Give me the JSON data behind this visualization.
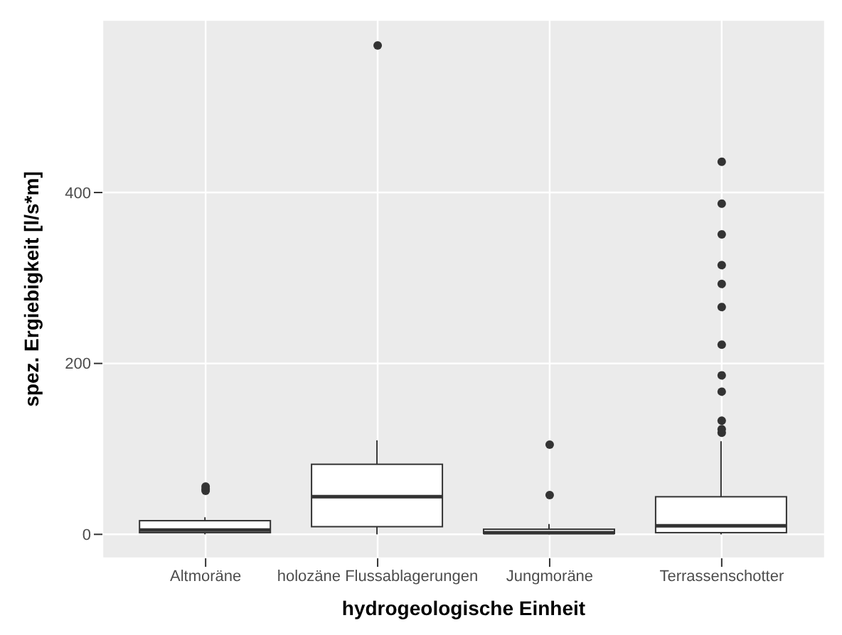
{
  "chart_data": {
    "type": "box",
    "xlabel": "hydrogeologische Einheit",
    "ylabel": "spez. Ergiebigkeit [l/s*m]",
    "categories": [
      "Altmoräne",
      "holozäne Flussablagerungen",
      "Jungmoräne",
      "Terrassenschotter"
    ],
    "boxes": [
      {
        "low": 0,
        "q1": 2,
        "median": 5,
        "q3": 16,
        "high": 20,
        "outliers": [
          51,
          53,
          56
        ]
      },
      {
        "low": 0,
        "q1": 9,
        "median": 44,
        "q3": 82,
        "high": 110,
        "outliers": [
          572
        ]
      },
      {
        "low": 0,
        "q1": 1,
        "median": 2,
        "q3": 6,
        "high": 12,
        "outliers": [
          46,
          105
        ]
      },
      {
        "low": 0,
        "q1": 2,
        "median": 10,
        "q3": 44,
        "high": 109,
        "outliers": [
          119,
          123,
          133,
          167,
          186,
          222,
          266,
          293,
          315,
          351,
          387,
          436
        ]
      }
    ],
    "ylim": [
      -28,
      602
    ],
    "yticks": [
      0,
      200,
      400
    ],
    "grid": true
  }
}
